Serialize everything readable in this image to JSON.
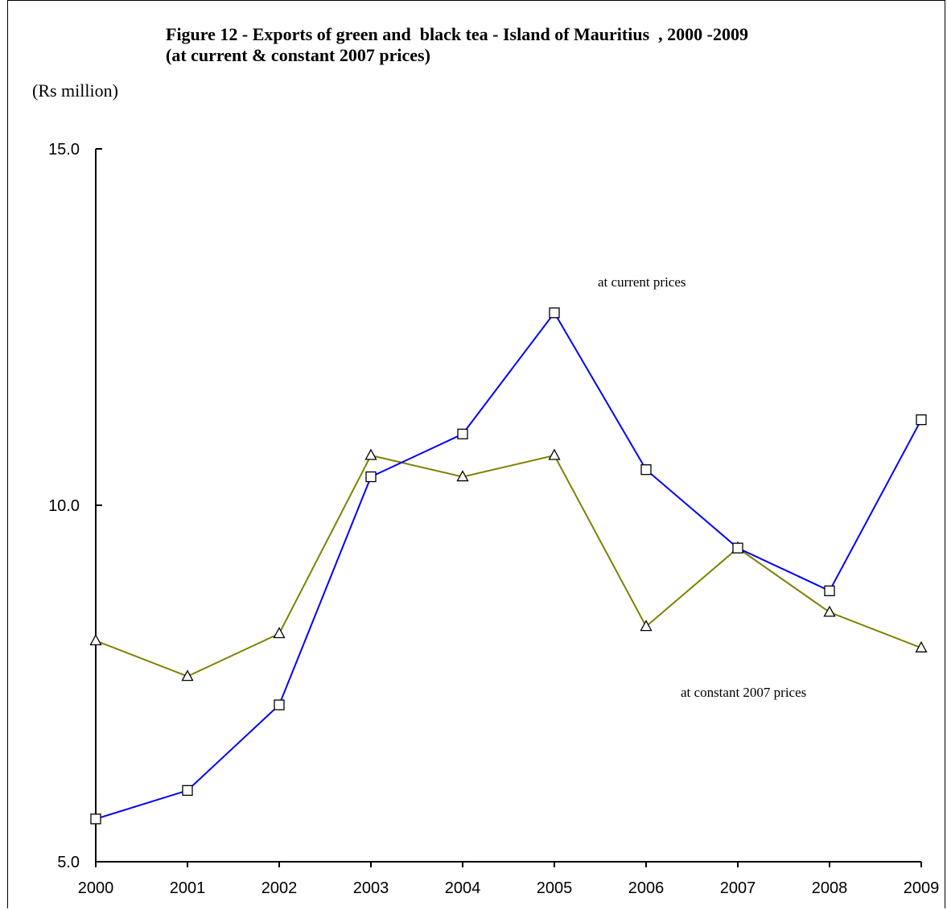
{
  "chart_data": {
    "type": "line",
    "title_line1": "Figure 12 - Exports of green and  black tea - Island of Mauritius  , 2000 -2009",
    "title_line2": "(at current & constant 2007 prices)",
    "ylabel": "(Rs million)",
    "categories": [
      "2000",
      "2001",
      "2002",
      "2003",
      "2004",
      "2005",
      "2006",
      "2007",
      "2008",
      "2009"
    ],
    "ylim": [
      5.0,
      15.0
    ],
    "yticks": [
      "15.0",
      "10.0",
      "5.0"
    ],
    "series": [
      {
        "name": "at current prices",
        "color": "#0000ff",
        "marker": "square",
        "values": [
          5.6,
          6.0,
          7.2,
          10.4,
          11.0,
          12.7,
          10.5,
          9.4,
          8.8,
          11.2
        ]
      },
      {
        "name": "at constant 2007 prices",
        "color": "#808000",
        "marker": "triangle",
        "values": [
          8.1,
          7.6,
          8.2,
          10.7,
          10.4,
          10.7,
          8.3,
          9.4,
          8.5,
          8.0
        ]
      }
    ],
    "grid": false,
    "legend": "inline labels"
  }
}
